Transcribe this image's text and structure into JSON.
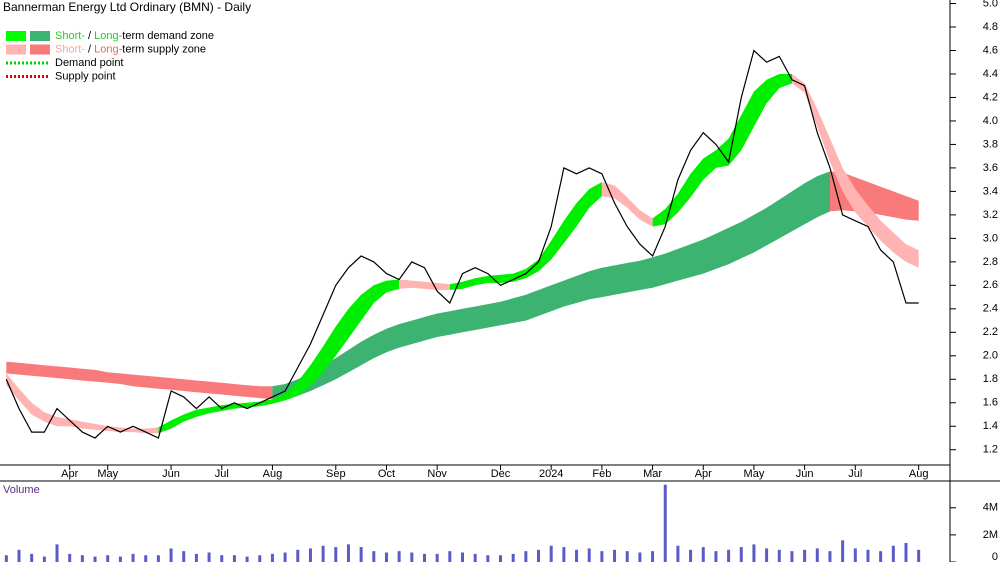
{
  "chart_data": [
    {
      "type": "line",
      "title": "Bannerman Energy Ltd Ordinary (BMN) - Daily",
      "categories": [
        null,
        null,
        null,
        null,
        null,
        "Apr",
        null,
        null,
        "May",
        null,
        null,
        null,
        null,
        "Jun",
        null,
        null,
        null,
        "Jul",
        null,
        null,
        null,
        "Aug",
        null,
        null,
        null,
        null,
        "Sep",
        null,
        null,
        null,
        "Oct",
        null,
        null,
        null,
        "Nov",
        null,
        null,
        null,
        null,
        "Dec",
        null,
        null,
        null,
        "2024",
        null,
        null,
        null,
        "Feb",
        null,
        null,
        null,
        "Mar",
        null,
        null,
        null,
        "Apr",
        null,
        null,
        null,
        "May",
        null,
        null,
        null,
        "Jun",
        null,
        null,
        null,
        "Jul",
        null,
        null,
        null,
        null,
        "Aug"
      ],
      "close": {
        "color": "#000000",
        "values": [
          1.8,
          1.55,
          1.35,
          1.35,
          1.55,
          1.45,
          1.35,
          1.3,
          1.4,
          1.35,
          1.4,
          1.35,
          1.3,
          1.7,
          1.65,
          1.55,
          1.65,
          1.55,
          1.6,
          1.55,
          1.6,
          1.65,
          1.7,
          1.9,
          2.1,
          2.35,
          2.6,
          2.75,
          2.85,
          2.8,
          2.7,
          2.65,
          2.8,
          2.75,
          2.55,
          2.45,
          2.7,
          2.75,
          2.7,
          2.6,
          2.65,
          2.7,
          2.8,
          3.1,
          3.6,
          3.55,
          3.6,
          3.55,
          3.3,
          3.1,
          2.95,
          2.85,
          3.1,
          3.5,
          3.75,
          3.9,
          3.8,
          3.65,
          4.2,
          4.6,
          4.5,
          4.55,
          4.35,
          4.3,
          3.9,
          3.6,
          3.2,
          3.15,
          3.1,
          2.9,
          2.8,
          2.45,
          2.45
        ]
      },
      "zones": [
        {
          "color": "#f87a7a",
          "upper": [
            1.95,
            1.94,
            1.93,
            1.92,
            1.91,
            1.9,
            1.89,
            1.88,
            1.86,
            1.85,
            1.84,
            1.83,
            1.82,
            1.81,
            1.8,
            1.79,
            1.78,
            1.77,
            1.76,
            1.75,
            1.74,
            1.74,
            null,
            null,
            null,
            null,
            null,
            null,
            null,
            null,
            null,
            null,
            null,
            null,
            null,
            null,
            null,
            null,
            null,
            null,
            null,
            null,
            null,
            null,
            null,
            null,
            null,
            null,
            null,
            null,
            null,
            null,
            null,
            null,
            null,
            null,
            null,
            null,
            null,
            null,
            null,
            null,
            null,
            null,
            null,
            3.57,
            3.56,
            3.52,
            3.48,
            3.44,
            3.4,
            3.36,
            3.32
          ],
          "lower": [
            1.85,
            1.84,
            1.83,
            1.82,
            1.81,
            1.8,
            1.79,
            1.78,
            1.77,
            1.76,
            1.74,
            1.73,
            1.72,
            1.71,
            1.7,
            1.69,
            1.68,
            1.67,
            1.66,
            1.65,
            1.64,
            1.63,
            null,
            null,
            null,
            null,
            null,
            null,
            null,
            null,
            null,
            null,
            null,
            null,
            null,
            null,
            null,
            null,
            null,
            null,
            null,
            null,
            null,
            null,
            null,
            null,
            null,
            null,
            null,
            null,
            null,
            null,
            null,
            null,
            null,
            null,
            null,
            null,
            null,
            null,
            null,
            null,
            null,
            null,
            null,
            3.23,
            3.24,
            3.23,
            3.22,
            3.2,
            3.18,
            3.16,
            3.15
          ]
        },
        {
          "color": "#3cb371",
          "upper": [
            null,
            null,
            null,
            null,
            null,
            null,
            null,
            null,
            null,
            null,
            null,
            null,
            null,
            null,
            null,
            null,
            null,
            null,
            null,
            null,
            null,
            1.74,
            1.76,
            1.8,
            1.85,
            1.92,
            1.98,
            2.05,
            2.12,
            2.18,
            2.23,
            2.27,
            2.3,
            2.33,
            2.36,
            2.38,
            2.4,
            2.42,
            2.44,
            2.46,
            2.49,
            2.52,
            2.56,
            2.6,
            2.64,
            2.68,
            2.72,
            2.75,
            2.77,
            2.79,
            2.81,
            2.84,
            2.87,
            2.91,
            2.95,
            2.99,
            3.04,
            3.09,
            3.14,
            3.2,
            3.26,
            3.33,
            3.4,
            3.47,
            3.53,
            3.57,
            null,
            null,
            null,
            null,
            null,
            null,
            null
          ],
          "lower": [
            null,
            null,
            null,
            null,
            null,
            null,
            null,
            null,
            null,
            null,
            null,
            null,
            null,
            null,
            null,
            null,
            null,
            null,
            null,
            null,
            null,
            1.63,
            1.63,
            1.66,
            1.7,
            1.75,
            1.8,
            1.86,
            1.92,
            1.98,
            2.03,
            2.07,
            2.1,
            2.13,
            2.16,
            2.18,
            2.2,
            2.22,
            2.24,
            2.26,
            2.28,
            2.3,
            2.34,
            2.38,
            2.42,
            2.45,
            2.48,
            2.5,
            2.52,
            2.54,
            2.56,
            2.58,
            2.61,
            2.64,
            2.67,
            2.7,
            2.74,
            2.78,
            2.83,
            2.88,
            2.94,
            3.0,
            3.06,
            3.12,
            3.18,
            3.23,
            null,
            null,
            null,
            null,
            null,
            null,
            null
          ]
        },
        {
          "color": "#00ee00",
          "upper": [
            null,
            null,
            null,
            null,
            null,
            null,
            null,
            null,
            null,
            null,
            null,
            null,
            1.39,
            1.45,
            1.5,
            1.54,
            1.56,
            1.58,
            1.59,
            1.6,
            1.61,
            1.63,
            1.68,
            1.78,
            1.92,
            2.08,
            2.25,
            2.4,
            2.52,
            2.6,
            2.64,
            2.65,
            null,
            null,
            null,
            2.61,
            2.63,
            2.66,
            2.68,
            2.69,
            2.7,
            2.74,
            2.82,
            2.98,
            3.15,
            3.3,
            3.42,
            3.48,
            null,
            null,
            null,
            3.17,
            3.25,
            3.38,
            3.55,
            3.68,
            3.75,
            3.85,
            4.05,
            4.25,
            4.35,
            4.4,
            4.4,
            null,
            null,
            null,
            null,
            null,
            null,
            null,
            null,
            null,
            null
          ],
          "lower": [
            null,
            null,
            null,
            null,
            null,
            null,
            null,
            null,
            null,
            null,
            null,
            null,
            1.34,
            1.38,
            1.44,
            1.48,
            1.51,
            1.53,
            1.55,
            1.56,
            1.57,
            1.59,
            1.62,
            1.66,
            1.74,
            1.86,
            2.0,
            2.15,
            2.3,
            2.45,
            2.54,
            2.57,
            null,
            null,
            null,
            2.56,
            2.57,
            2.6,
            2.62,
            2.62,
            2.63,
            2.66,
            2.72,
            2.82,
            2.96,
            3.1,
            3.26,
            3.36,
            null,
            null,
            null,
            3.1,
            3.12,
            3.22,
            3.35,
            3.5,
            3.6,
            3.62,
            3.75,
            3.95,
            4.15,
            4.28,
            4.32,
            null,
            null,
            null,
            null,
            null,
            null,
            null,
            null,
            null,
            null
          ]
        },
        {
          "color": "#ffb3b3",
          "upper": [
            1.85,
            1.72,
            1.6,
            1.52,
            1.48,
            1.46,
            1.44,
            1.42,
            1.4,
            1.39,
            1.38,
            1.38,
            1.39,
            null,
            null,
            null,
            null,
            null,
            null,
            null,
            null,
            null,
            null,
            null,
            null,
            null,
            null,
            null,
            null,
            null,
            null,
            2.65,
            2.64,
            2.63,
            2.62,
            2.61,
            null,
            null,
            null,
            null,
            null,
            null,
            null,
            null,
            null,
            null,
            null,
            3.48,
            3.45,
            3.35,
            3.24,
            3.17,
            null,
            null,
            null,
            null,
            null,
            null,
            null,
            null,
            null,
            null,
            4.4,
            4.32,
            4.1,
            3.85,
            3.6,
            3.42,
            3.28,
            3.15,
            3.05,
            2.95,
            2.9
          ],
          "lower": [
            1.75,
            1.62,
            1.5,
            1.44,
            1.4,
            1.4,
            1.38,
            1.37,
            1.36,
            1.35,
            1.35,
            1.34,
            1.34,
            null,
            null,
            null,
            null,
            null,
            null,
            null,
            null,
            null,
            null,
            null,
            null,
            null,
            null,
            null,
            null,
            null,
            null,
            2.57,
            2.58,
            2.57,
            2.56,
            2.56,
            null,
            null,
            null,
            null,
            null,
            null,
            null,
            null,
            null,
            null,
            null,
            3.36,
            3.34,
            3.26,
            3.16,
            3.1,
            null,
            null,
            null,
            null,
            null,
            null,
            null,
            null,
            null,
            null,
            4.32,
            4.24,
            3.95,
            3.65,
            3.4,
            3.22,
            3.1,
            2.98,
            2.88,
            2.8,
            2.75
          ]
        }
      ],
      "legend": [
        {
          "swatches": [
            "#00ff00",
            "#3cb371"
          ],
          "parts": [
            "Short-",
            " / ",
            "Long-",
            "term demand zone"
          ],
          "part_colors": [
            "#22cc22",
            "#000000",
            "#22cc22",
            "#000000"
          ]
        },
        {
          "swatches": [
            "#ffb3b3",
            "#f87a7a"
          ],
          "parts": [
            "Short-",
            " / ",
            "Long-",
            "term supply zone"
          ],
          "part_colors": [
            "#ff9f9f",
            "#000000",
            "#f06060",
            "#000000"
          ]
        },
        {
          "line_color": "#00cc00",
          "parts": [
            "Demand point"
          ],
          "part_colors": [
            "#000000"
          ]
        },
        {
          "line_color": "#dd0000",
          "parts": [
            "Supply point"
          ],
          "part_colors": [
            "#000000"
          ]
        }
      ],
      "ylim": [
        1.07,
        5.03
      ],
      "yticks": [
        1.2,
        1.4,
        1.6,
        1.8,
        {
          "value": 2,
          "label": "2.0"
        },
        2.2,
        2.4,
        2.6,
        2.8,
        {
          "value": 3,
          "label": "3.0"
        },
        3.2,
        3.4,
        3.6,
        3.8,
        {
          "value": 4,
          "label": "4.0"
        },
        4.2,
        4.4,
        4.6,
        4.8,
        {
          "value": 5,
          "label": "5.0"
        }
      ]
    },
    {
      "type": "bar",
      "title": "Volume",
      "color": "#5a5ac8",
      "values": [
        0.5,
        0.9,
        0.6,
        0.4,
        1.3,
        0.6,
        0.5,
        0.4,
        0.5,
        0.4,
        0.6,
        0.5,
        0.5,
        1.0,
        0.8,
        0.6,
        0.7,
        0.5,
        0.5,
        0.4,
        0.5,
        0.6,
        0.7,
        0.9,
        1.0,
        1.2,
        1.1,
        1.3,
        1.1,
        0.8,
        0.7,
        0.8,
        0.7,
        0.6,
        0.6,
        0.8,
        0.7,
        0.6,
        0.5,
        0.5,
        0.6,
        0.8,
        0.9,
        1.2,
        1.1,
        0.9,
        1.0,
        0.8,
        0.9,
        0.8,
        0.7,
        0.8,
        5.7,
        1.2,
        0.9,
        1.1,
        0.8,
        0.9,
        1.1,
        1.3,
        1.0,
        0.9,
        0.8,
        0.9,
        1.0,
        0.8,
        1.6,
        1.0,
        0.9,
        0.8,
        1.2,
        1.4,
        0.9
      ],
      "ylim": [
        0,
        5.9
      ],
      "yticks": [
        0,
        {
          "value": 2,
          "label": "2M"
        },
        {
          "value": 4,
          "label": "4M"
        }
      ]
    }
  ]
}
